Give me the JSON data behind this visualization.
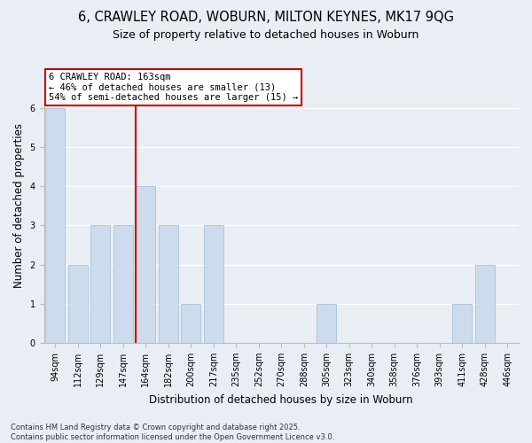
{
  "title1": "6, CRAWLEY ROAD, WOBURN, MILTON KEYNES, MK17 9QG",
  "title2": "Size of property relative to detached houses in Woburn",
  "xlabel": "Distribution of detached houses by size in Woburn",
  "ylabel": "Number of detached properties",
  "categories": [
    "94sqm",
    "112sqm",
    "129sqm",
    "147sqm",
    "164sqm",
    "182sqm",
    "200sqm",
    "217sqm",
    "235sqm",
    "252sqm",
    "270sqm",
    "288sqm",
    "305sqm",
    "323sqm",
    "340sqm",
    "358sqm",
    "376sqm",
    "393sqm",
    "411sqm",
    "428sqm",
    "446sqm"
  ],
  "values": [
    6,
    2,
    3,
    3,
    4,
    3,
    1,
    3,
    0,
    0,
    0,
    0,
    1,
    0,
    0,
    0,
    0,
    0,
    1,
    2,
    0
  ],
  "bar_color": "#ccdcec",
  "bar_edge_color": "#b0c8dc",
  "property_line_color": "#cc0000",
  "annotation_text": "6 CRAWLEY ROAD: 163sqm\n← 46% of detached houses are smaller (13)\n54% of semi-detached houses are larger (15) →",
  "annotation_box_color": "#ffffff",
  "annotation_box_edge": "#cc0000",
  "ylim": [
    0,
    7
  ],
  "yticks": [
    0,
    1,
    2,
    3,
    4,
    5,
    6
  ],
  "footer": "Contains HM Land Registry data © Crown copyright and database right 2025.\nContains public sector information licensed under the Open Government Licence v3.0.",
  "bg_color": "#e8eef4",
  "plot_bg_color": "#e8eef4",
  "title_fontsize": 10.5,
  "subtitle_fontsize": 9,
  "axis_fontsize": 8.5,
  "tick_fontsize": 7,
  "annotation_fontsize": 7.5,
  "footer_fontsize": 6
}
